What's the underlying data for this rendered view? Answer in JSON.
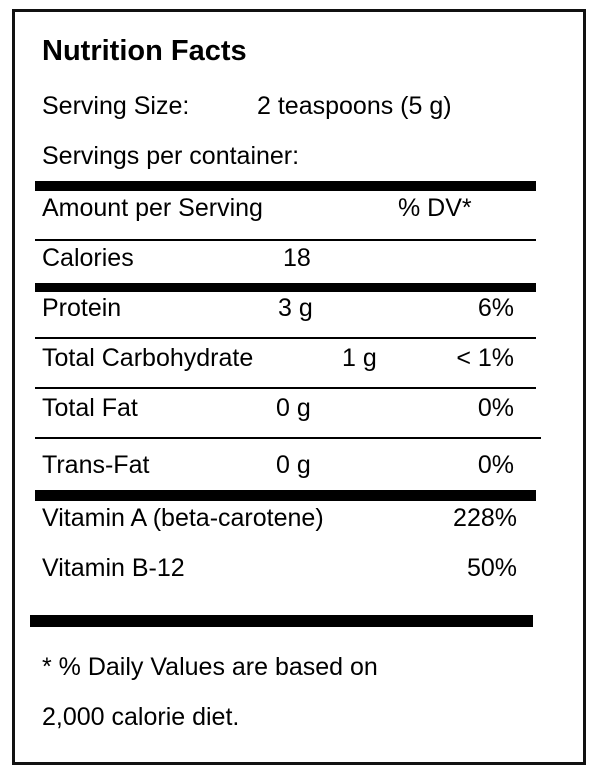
{
  "title": "Nutrition Facts",
  "serving_size": {
    "label": "Serving Size:",
    "value": "2 teaspoons (5 g)"
  },
  "servings_per_container": "Servings per container:",
  "header": {
    "amount": "Amount per Serving",
    "dv": "% DV*"
  },
  "rows": [
    {
      "name": "Calories",
      "amount": "18"
    },
    {
      "name": "Protein",
      "amount": "3 g",
      "dv": "6%"
    },
    {
      "name": "Total Carbohydrate",
      "amount": "1 g",
      "dv": "< 1%"
    },
    {
      "name": "Total Fat",
      "amount": "0 g",
      "dv": "0%"
    },
    {
      "name": "Trans-Fat",
      "amount": "0 g",
      "dv": "0%"
    }
  ],
  "vitamins": [
    {
      "name": "Vitamin A (beta-carotene)",
      "dv": "228%"
    },
    {
      "name": "Vitamin B-12",
      "dv": "50%"
    }
  ],
  "footnote": [
    "* % Daily Values are based on",
    "2,000 calorie diet."
  ]
}
